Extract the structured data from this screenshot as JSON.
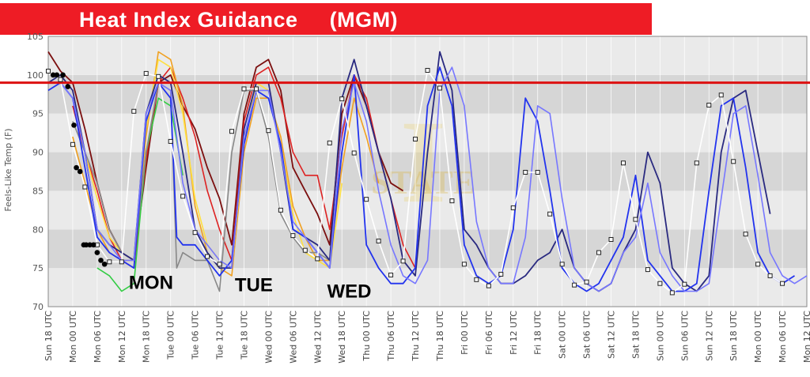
{
  "banner": {
    "title": "Heat Index Guidance     (MGM)",
    "color": "#ee1c25"
  },
  "chart_data": {
    "type": "line",
    "ylabel": "Feels-Like Temp (F)",
    "ylim": [
      70,
      105
    ],
    "yticks": [
      70,
      75,
      80,
      85,
      90,
      95,
      100,
      105
    ],
    "threshold": {
      "value": 99,
      "color": "#dd1111"
    },
    "x_tick_labels": [
      "Sun 18 UTC",
      "Mon 00 UTC",
      "Mon 06 UTC",
      "Mon 12 UTC",
      "Mon 18 UTC",
      "Tue 00 UTC",
      "Tue 06 UTC",
      "Tue 12 UTC",
      "Tue 18 UTC",
      "Wed 00 UTC",
      "Wed 06 UTC",
      "Wed 12 UTC",
      "Wed 18 UTC",
      "Thu 00 UTC",
      "Thu 06 UTC",
      "Thu 12 UTC",
      "Thu 18 UTC",
      "Fri 00 UTC",
      "Fri 06 UTC",
      "Fri 12 UTC",
      "Fri 18 UTC",
      "Sat 00 UTC",
      "Sat 06 UTC",
      "Sat 12 UTC",
      "Sat 18 UTC",
      "Sun 00 UTC",
      "Sun 06 UTC",
      "Sun 12 UTC",
      "Sun 18 UTC",
      "Mon 00 UTC",
      "Mon 06 UTC",
      "Mon 12 UTC"
    ],
    "day_labels": [
      {
        "text": "MON",
        "x": 4.2,
        "y": 72.3
      },
      {
        "text": "TUE",
        "x": 8.4,
        "y": 72.0
      },
      {
        "text": "WED",
        "x": 12.3,
        "y": 71.2
      }
    ],
    "grid": true,
    "series": [
      {
        "color": "#7b0f0f",
        "width": 1.8,
        "x": [
          0,
          0.5,
          1,
          1.5,
          2,
          2.5,
          3,
          3.5,
          4,
          4.5,
          5,
          5.5,
          6,
          6.5,
          7,
          7.5,
          8,
          8.5,
          9,
          9.5,
          10,
          10.5,
          11,
          11.5,
          12,
          12.5,
          13,
          13.5,
          14,
          14.5
        ],
        "y": [
          103,
          100.5,
          99,
          93,
          86,
          80,
          77,
          76,
          88,
          99,
          100,
          96,
          93,
          88,
          84,
          78,
          95,
          101,
          102,
          98,
          88,
          85,
          82,
          78,
          95,
          100,
          96,
          90,
          86,
          85
        ]
      },
      {
        "color": "#dd2222",
        "width": 1.6,
        "x": [
          1,
          1.5,
          2,
          2.5,
          3,
          3.5,
          4,
          4.5,
          5,
          5.5,
          6,
          6.5,
          7,
          7.5,
          8,
          8.5,
          9,
          9.5,
          10,
          10.5,
          11,
          11.5,
          12,
          12.5,
          13,
          13.5,
          14,
          14.5,
          15
        ],
        "y": [
          96,
          90,
          85,
          79,
          76,
          75,
          89,
          99,
          101,
          97,
          92,
          85,
          80,
          76,
          94,
          100,
          101,
          97,
          90,
          87,
          87,
          80,
          92,
          100,
          97,
          90,
          84,
          78,
          75
        ]
      },
      {
        "color": "#f0a020",
        "width": 1.6,
        "x": [
          1,
          1.5,
          2,
          2.5,
          3,
          3.5,
          4,
          4.5,
          5,
          5.5,
          6,
          6.5,
          7,
          7.5,
          8,
          8.5,
          9,
          9.5,
          10,
          10.5,
          11,
          11.5,
          12,
          12.5,
          13,
          13.5
        ],
        "y": [
          92,
          86,
          80,
          77,
          76,
          76,
          92,
          103,
          102,
          96,
          83,
          77,
          75,
          74,
          90,
          97,
          97,
          92,
          83,
          79,
          76,
          76,
          88,
          97,
          92,
          86
        ]
      },
      {
        "color": "#ffe040",
        "width": 1.6,
        "x": [
          1.5,
          2,
          2.5,
          3,
          3.5,
          4,
          4.5,
          5,
          5.5,
          6,
          6.5,
          7,
          7.5,
          8,
          8.5,
          9,
          9.5,
          10,
          10.5,
          11,
          11.5,
          12
        ],
        "y": [
          90,
          84,
          79,
          77,
          76,
          93,
          102,
          101,
          95,
          84,
          78,
          76,
          75,
          91,
          99,
          98,
          91,
          82,
          77,
          76,
          75,
          86
        ]
      },
      {
        "color": "#33cc44",
        "width": 1.6,
        "x": [
          2,
          2.5,
          3,
          3.5,
          4,
          4.5,
          5,
          5.5
        ],
        "y": [
          75,
          74,
          72,
          73,
          90,
          97,
          96,
          87
        ]
      },
      {
        "color": "#888888",
        "width": 1.6,
        "x": [
          1,
          1.5,
          2,
          2.5,
          3,
          3.5,
          4,
          4.5,
          5,
          5.25,
          5.5,
          6,
          6.5,
          7,
          7.5,
          8,
          8.5,
          9,
          9.5,
          10,
          10.5,
          11,
          11.5,
          12
        ],
        "y": [
          94,
          90,
          86,
          80,
          77,
          76,
          90,
          99,
          98,
          75,
          77,
          76,
          76,
          72,
          90,
          98,
          98,
          92,
          82,
          79,
          77,
          77,
          76,
          90
        ]
      },
      {
        "color": "#2a2a80",
        "width": 1.8,
        "x": [
          0,
          0.5,
          1,
          1.5,
          2,
          2.5,
          3,
          3.5,
          4,
          4.5,
          5,
          5.5,
          6,
          6.5,
          7,
          7.5,
          8,
          8.5,
          9,
          9.5,
          10,
          10.5,
          11,
          11.5,
          12,
          12.5,
          13,
          13.5,
          14,
          14.5,
          15,
          15.5,
          16,
          16.5,
          17,
          17.5,
          18,
          18.5,
          19,
          19.5,
          20,
          20.5,
          21,
          21.5,
          22,
          22.5,
          23,
          23.5,
          24,
          24.5,
          25,
          25.5,
          26,
          26.5,
          27,
          27.5,
          28,
          28.5,
          29,
          29.5
        ],
        "y": [
          99,
          100,
          98,
          90,
          80,
          78,
          77,
          76,
          95,
          100,
          99,
          90,
          80,
          77,
          75,
          75,
          93,
          99,
          99,
          90,
          80,
          79,
          78,
          76,
          97,
          102,
          96,
          90,
          84,
          76,
          74,
          90,
          103,
          98,
          80,
          78,
          75,
          73,
          73,
          74,
          76,
          77,
          80,
          75,
          73,
          72,
          73,
          77,
          80,
          90,
          86,
          75,
          73,
          72,
          74,
          90,
          97,
          98,
          90,
          82
        ]
      },
      {
        "color": "#2233ee",
        "width": 1.8,
        "x": [
          0,
          0.5,
          1,
          1.5,
          2,
          2.5,
          3,
          3.5,
          4,
          4.5,
          5,
          5.25,
          5.5,
          6,
          6.5,
          7,
          7.5,
          8,
          8.5,
          9,
          9.5,
          10,
          10.5,
          11,
          11.5,
          12,
          12.5,
          13,
          13.5,
          14,
          14.5,
          15,
          15.5,
          16,
          16.5,
          17,
          17.5,
          18,
          18.5,
          19,
          19.5,
          20,
          20.5,
          21,
          21.5,
          22,
          22.5,
          23,
          23.5,
          24,
          24.5,
          25,
          25.5,
          26,
          26.5,
          27,
          27.5,
          28,
          28.5,
          29,
          29.5,
          30,
          30.5
        ],
        "y": [
          98,
          99,
          97,
          88,
          79,
          77,
          76,
          75,
          94,
          99,
          97,
          79,
          78,
          78,
          76,
          74,
          76,
          91,
          98,
          97,
          91,
          80,
          79,
          77,
          75,
          90,
          100,
          78,
          75,
          73,
          73,
          75,
          96,
          101,
          96,
          78,
          74,
          73,
          74,
          80,
          97,
          94,
          85,
          75,
          73,
          72,
          73,
          76,
          79,
          87,
          76,
          74,
          72,
          72,
          73,
          85,
          96,
          97,
          88,
          77,
          74,
          73,
          74
        ]
      },
      {
        "color": "#7777ff",
        "width": 1.6,
        "x": [
          0,
          0.5,
          1,
          1.5,
          2,
          2.5,
          3,
          3.5,
          4,
          4.5,
          5,
          5.5,
          6,
          6.5,
          7,
          7.5,
          8,
          8.5,
          9,
          9.5,
          10,
          10.5,
          11,
          11.5,
          12,
          12.5,
          13,
          13.5,
          14,
          14.5,
          15,
          15.5,
          16,
          16.5,
          17,
          17.5,
          18,
          18.5,
          19,
          19.5,
          20,
          20.5,
          21,
          21.5,
          22,
          22.5,
          23,
          23.5,
          24,
          24.5,
          25,
          25.5,
          26,
          26.5,
          27,
          27.5,
          28,
          28.5,
          29,
          29.5,
          30,
          30.5,
          31
        ],
        "y": [
          99,
          99,
          97,
          90,
          80,
          78,
          76,
          76,
          95,
          99,
          98,
          86,
          80,
          78,
          76,
          75,
          92,
          98,
          98,
          90,
          81,
          79,
          77,
          75,
          93,
          99,
          94,
          85,
          78,
          74,
          73,
          76,
          98,
          101,
          96,
          81,
          75,
          73,
          73,
          79,
          96,
          95,
          84,
          75,
          73,
          72,
          73,
          77,
          79,
          86,
          77,
          74,
          72,
          72,
          73,
          84,
          95,
          96,
          87,
          77,
          74,
          73,
          74
        ]
      },
      {
        "color": "#ffffff",
        "width": 1.6,
        "markers": true,
        "x": [
          0,
          0.5,
          1,
          1.5,
          2,
          2.5,
          3,
          3.5,
          4,
          4.5,
          5,
          5.5,
          6,
          6.5,
          7,
          7.5,
          8,
          8.5,
          9,
          9.5,
          10,
          10.5,
          11,
          11.5,
          12,
          12.5,
          13,
          13.5,
          14,
          14.5,
          15,
          15.5,
          16,
          16.5,
          17,
          17.5,
          18,
          18.5,
          19,
          19.5,
          20,
          20.5,
          21,
          21.5,
          22,
          22.5,
          23,
          23.5,
          24,
          24.5,
          25,
          25.5,
          26,
          26.5,
          27,
          27.5,
          28,
          28.5,
          29,
          29.5,
          30
        ],
        "y": [
          100.5,
          99.4,
          91,
          85.5,
          78,
          75.8,
          75.8,
          95.3,
          100.2,
          99.8,
          91.4,
          84.3,
          79.6,
          76.5,
          75.5,
          92.7,
          98.2,
          98.2,
          92.8,
          82.5,
          79.2,
          77.3,
          76.2,
          91.2,
          96.9,
          89.9,
          83.9,
          78.5,
          74.1,
          75.9,
          91.7,
          100.6,
          98.3,
          83.7,
          75.5,
          73.5,
          72.7,
          74.2,
          82.8,
          87.4,
          87.4,
          82,
          75.5,
          72.8,
          73.2,
          77,
          78.7,
          88.6,
          81.3,
          74.8,
          73,
          71.8,
          72.9,
          88.6,
          96.1,
          97.4,
          88.8,
          79.4,
          75.5,
          74,
          73
        ]
      },
      {
        "color": "#000000",
        "width": 0,
        "dots": true,
        "x": [
          0.2,
          0.35,
          0.6,
          0.8,
          1.05,
          1.15,
          1.3,
          1.45,
          1.55,
          1.7,
          1.85,
          2,
          2.15,
          2.3
        ],
        "y": [
          100,
          100,
          100,
          98.5,
          93.5,
          88,
          87.5,
          78,
          78,
          78,
          78,
          77,
          76,
          75.5
        ]
      }
    ]
  }
}
